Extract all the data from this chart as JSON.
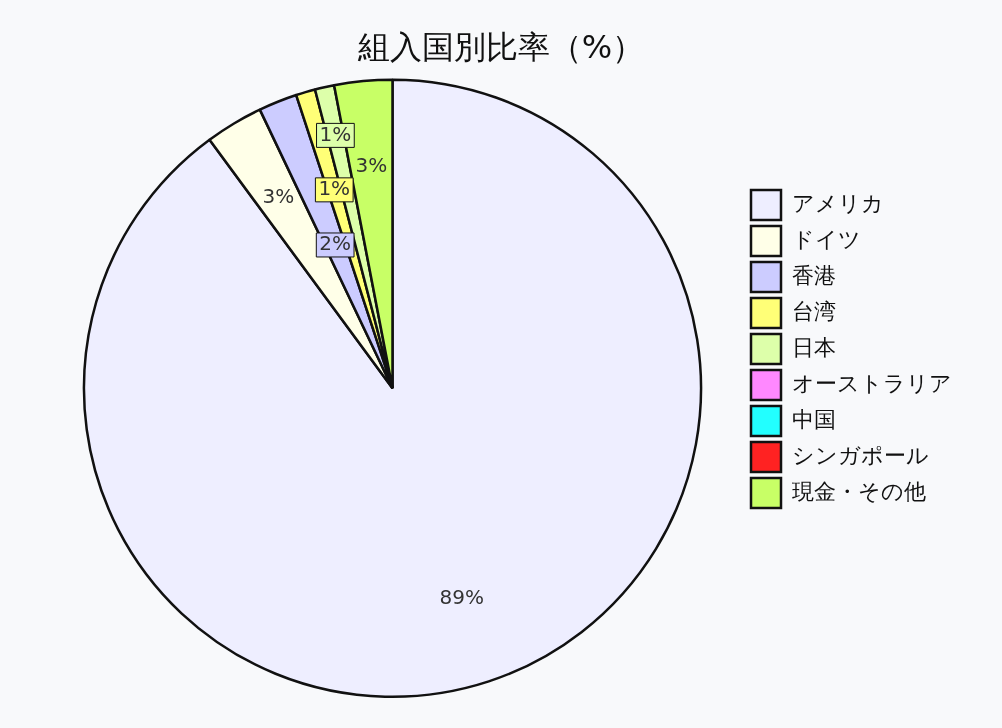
{
  "chart_data": {
    "type": "pie",
    "title": "組入国別比率（%）",
    "categories": [
      "アメリカ",
      "ドイツ",
      "香港",
      "台湾",
      "日本",
      "オーストラリア",
      "中国",
      "シンガポール",
      "現金・その他"
    ],
    "values": [
      89,
      3,
      2,
      1,
      1,
      0,
      0,
      0,
      3
    ],
    "value_labels": [
      "89%",
      "3%",
      "2%",
      "1%",
      "1%",
      null,
      null,
      null,
      "3%"
    ],
    "colors": [
      "#eeeeff",
      "#ffffe8",
      "#ccccff",
      "#ffff77",
      "#ddffaa",
      "#ff88ff",
      "#22ffff",
      "#ff2222",
      "#c8ff66"
    ],
    "legend": "right"
  }
}
